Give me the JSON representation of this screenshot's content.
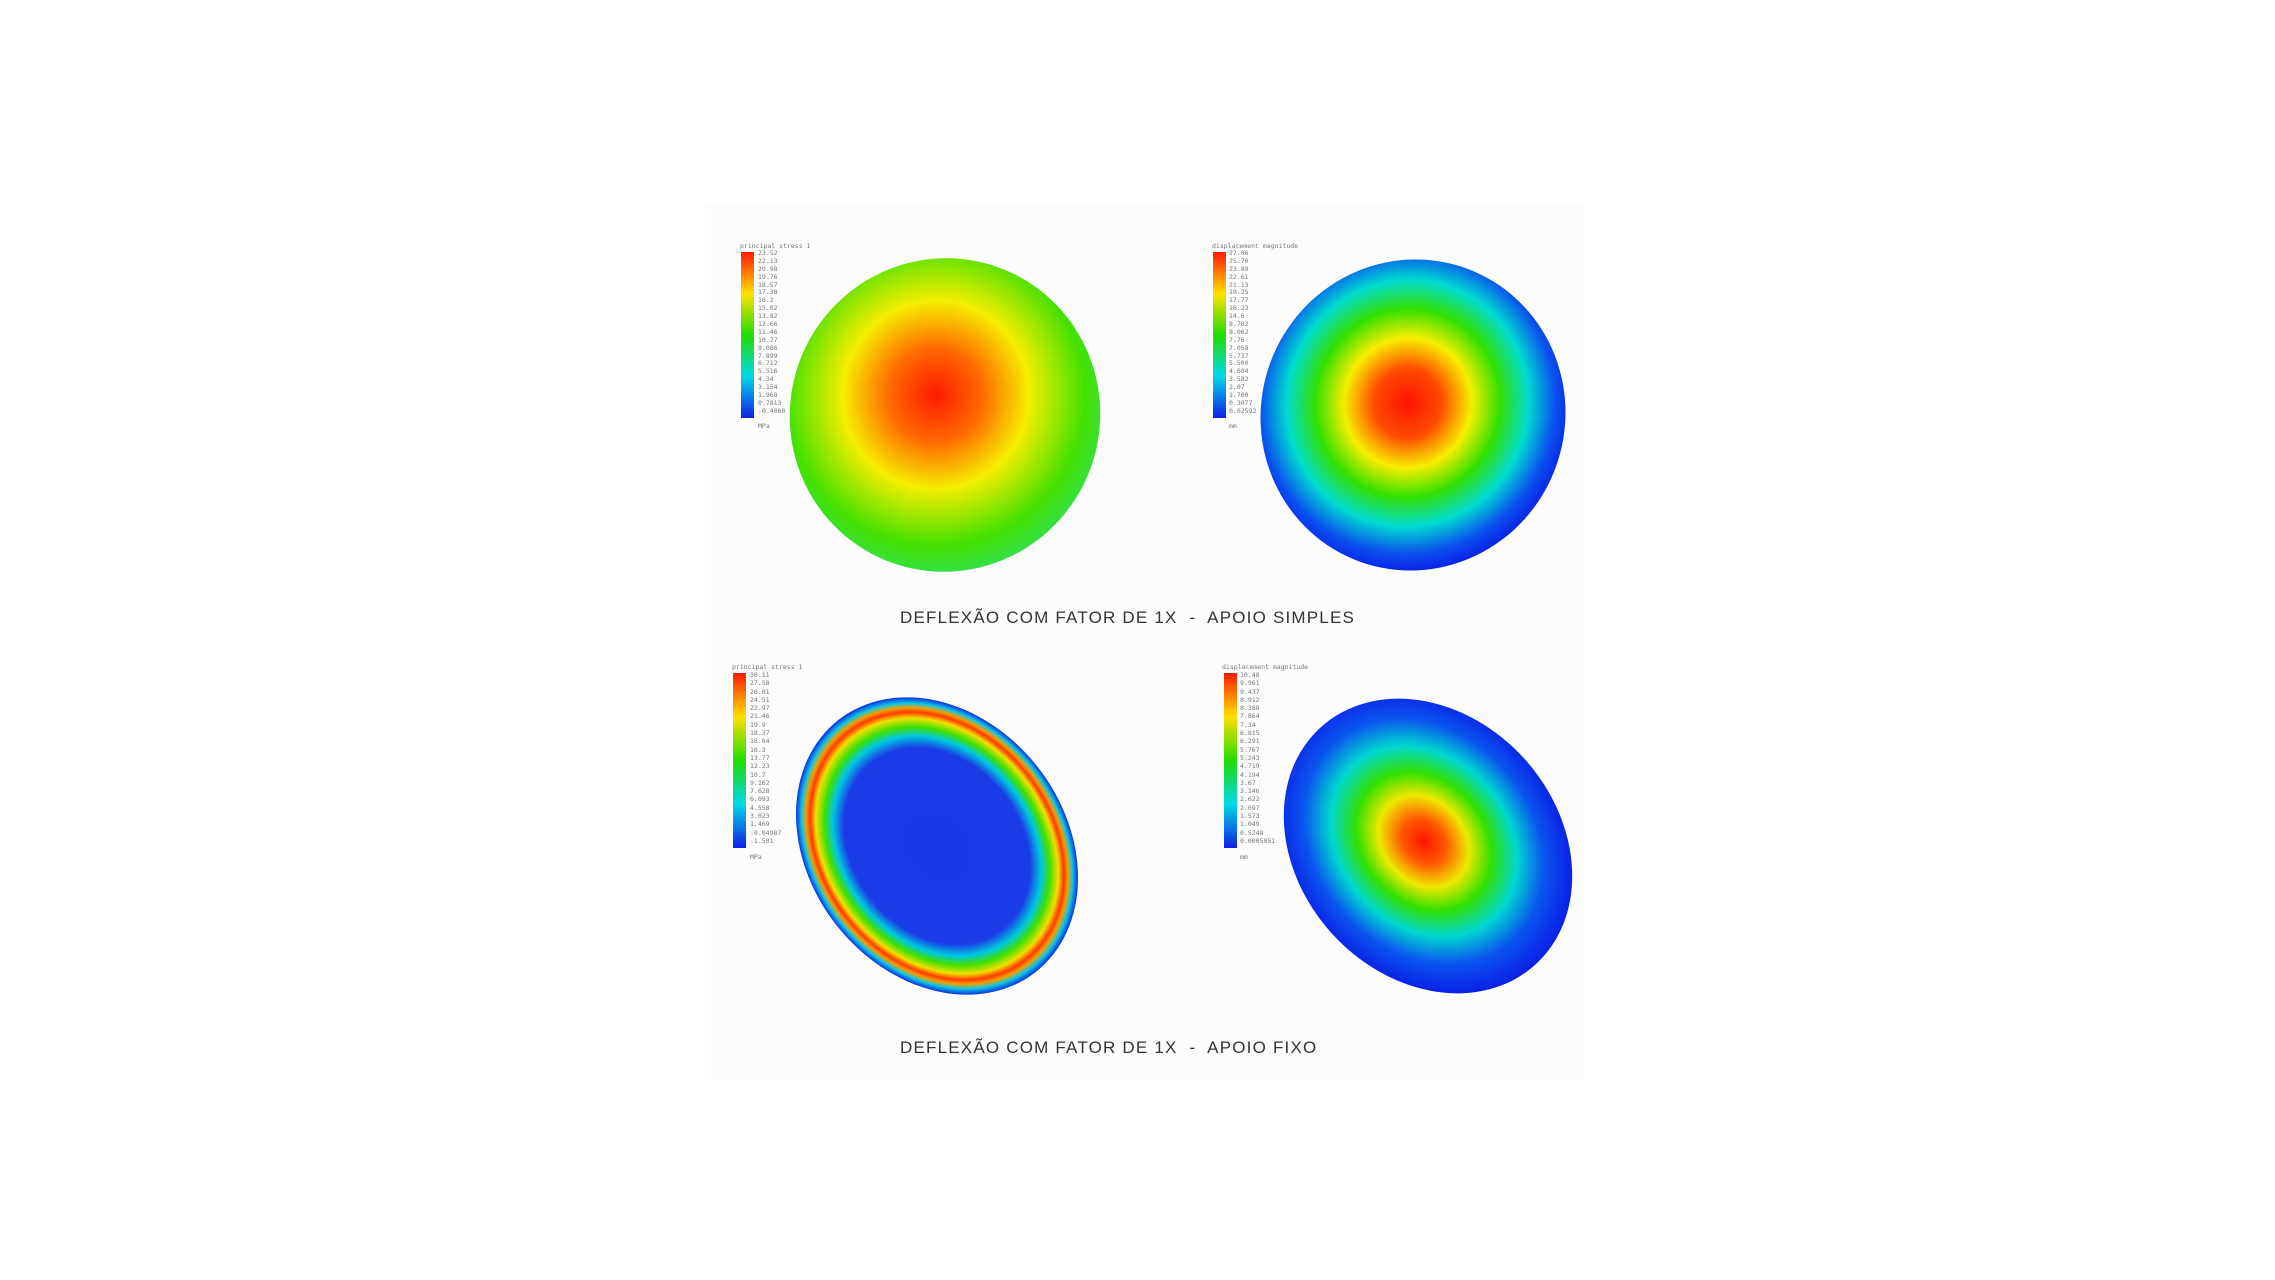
{
  "captions": {
    "top": "DEFLEXÃO COM FATOR DE 1X  -  APOIO SIMPLES",
    "bottom": "DEFLEXÃO COM FATOR DE 1X  -  APOIO FIXO"
  },
  "plots": [
    {
      "legend_title": "principal stress 1",
      "unit": "MPa",
      "values": [
        "23.52",
        "22.13",
        "20.98",
        "19.76",
        "18.57",
        "17.38",
        "16.2",
        "15.02",
        "13.82",
        "12.66",
        "11.46",
        "10.27",
        "9.086",
        "7.899",
        "6.712",
        "5.516",
        "4.34",
        "3.154",
        "1.968",
        "0.7813",
        "-0.4060"
      ]
    },
    {
      "legend_title": "displacement magnitude",
      "unit": "mm",
      "values": [
        "27.06",
        "25.70",
        "23.89",
        "22.61",
        "21.13",
        "19.25",
        "17.77",
        "16.23",
        "14.6",
        "8.702",
        "8.062",
        "7.76",
        "7.058",
        "5.737",
        "5.500",
        "4.604",
        "3.582",
        "2.07",
        "1.700",
        "0.3077",
        "0.02592"
      ]
    },
    {
      "legend_title": "principal stress 1",
      "unit": "MPa",
      "values": [
        "30.11",
        "27.58",
        "26.01",
        "24.51",
        "22.97",
        "21.46",
        "19.9",
        "18.37",
        "16.84",
        "16.3",
        "13.77",
        "12.23",
        "10.7",
        "9.162",
        "7.628",
        "6.093",
        "4.558",
        "3.023",
        "1.469",
        "-0.04987",
        "-1.501"
      ]
    },
    {
      "legend_title": "displacement magnitude",
      "unit": "mm",
      "values": [
        "10.48",
        "9.961",
        "9.437",
        "8.912",
        "8.388",
        "7.864",
        "7.34",
        "6.815",
        "6.291",
        "5.767",
        "5.243",
        "4.719",
        "4.194",
        "3.67",
        "3.146",
        "2.622",
        "2.097",
        "1.573",
        "1.049",
        "0.5248",
        "0.0005051"
      ]
    }
  ],
  "colors": {
    "high": "#ff1a00",
    "mid": "#26e000",
    "low": "#0a1ee6"
  }
}
